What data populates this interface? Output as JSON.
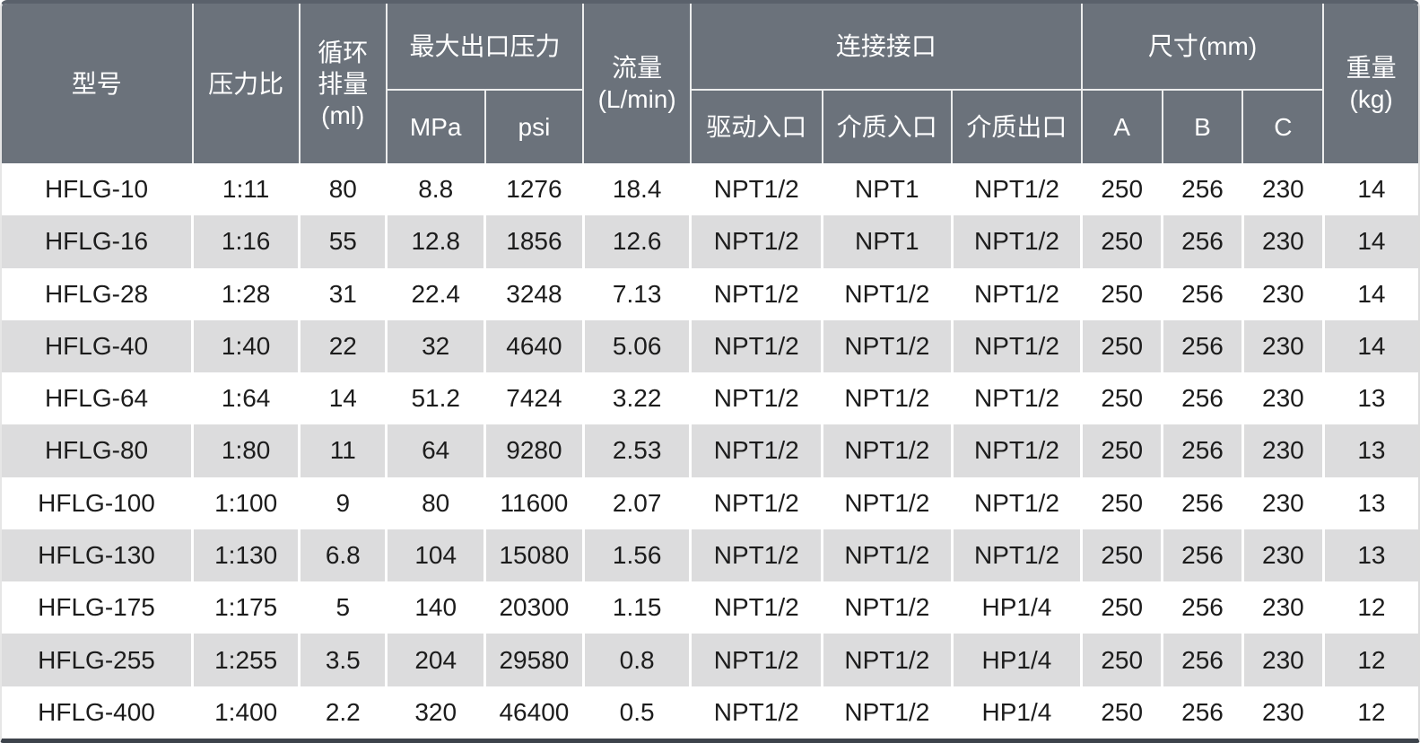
{
  "colors": {
    "header_bg": "#6b727b",
    "header_text": "#ffffff",
    "row_bg": "#ffffff",
    "row_alt_bg": "#dcdcdd",
    "body_text": "#1c1c1c",
    "top_edge": "#5a616b",
    "bottom_edge": "#3d434b"
  },
  "table": {
    "header": {
      "model": "型号",
      "pressure_ratio": "压力比",
      "displacement": "循环\n排量\n(ml)",
      "max_outlet_pressure": "最大出口压力",
      "mpa": "MPa",
      "psi": "psi",
      "flow": "流量\n(L/min)",
      "connections": "连接接口",
      "drive_inlet": "驱动入口",
      "media_inlet": "介质入口",
      "media_outlet": "介质出口",
      "dimensions": "尺寸(mm)",
      "dim_a": "A",
      "dim_b": "B",
      "dim_c": "C",
      "weight": "重量\n(kg)"
    },
    "rows": [
      [
        "HFLG-10",
        "1:11",
        "80",
        "8.8",
        "1276",
        "18.4",
        "NPT1/2",
        "NPT1",
        "NPT1/2",
        "250",
        "256",
        "230",
        "14"
      ],
      [
        "HFLG-16",
        "1:16",
        "55",
        "12.8",
        "1856",
        "12.6",
        "NPT1/2",
        "NPT1",
        "NPT1/2",
        "250",
        "256",
        "230",
        "14"
      ],
      [
        "HFLG-28",
        "1:28",
        "31",
        "22.4",
        "3248",
        "7.13",
        "NPT1/2",
        "NPT1/2",
        "NPT1/2",
        "250",
        "256",
        "230",
        "14"
      ],
      [
        "HFLG-40",
        "1:40",
        "22",
        "32",
        "4640",
        "5.06",
        "NPT1/2",
        "NPT1/2",
        "NPT1/2",
        "250",
        "256",
        "230",
        "14"
      ],
      [
        "HFLG-64",
        "1:64",
        "14",
        "51.2",
        "7424",
        "3.22",
        "NPT1/2",
        "NPT1/2",
        "NPT1/2",
        "250",
        "256",
        "230",
        "13"
      ],
      [
        "HFLG-80",
        "1:80",
        "11",
        "64",
        "9280",
        "2.53",
        "NPT1/2",
        "NPT1/2",
        "NPT1/2",
        "250",
        "256",
        "230",
        "13"
      ],
      [
        "HFLG-100",
        "1:100",
        "9",
        "80",
        "11600",
        "2.07",
        "NPT1/2",
        "NPT1/2",
        "NPT1/2",
        "250",
        "256",
        "230",
        "13"
      ],
      [
        "HFLG-130",
        "1:130",
        "6.8",
        "104",
        "15080",
        "1.56",
        "NPT1/2",
        "NPT1/2",
        "NPT1/2",
        "250",
        "256",
        "230",
        "13"
      ],
      [
        "HFLG-175",
        "1:175",
        "5",
        "140",
        "20300",
        "1.15",
        "NPT1/2",
        "NPT1/2",
        "HP1/4",
        "250",
        "256",
        "230",
        "12"
      ],
      [
        "HFLG-255",
        "1:255",
        "3.5",
        "204",
        "29580",
        "0.8",
        "NPT1/2",
        "NPT1/2",
        "HP1/4",
        "250",
        "256",
        "230",
        "12"
      ],
      [
        "HFLG-400",
        "1:400",
        "2.2",
        "320",
        "46400",
        "0.5",
        "NPT1/2",
        "NPT1/2",
        "HP1/4",
        "250",
        "256",
        "230",
        "12"
      ]
    ]
  }
}
